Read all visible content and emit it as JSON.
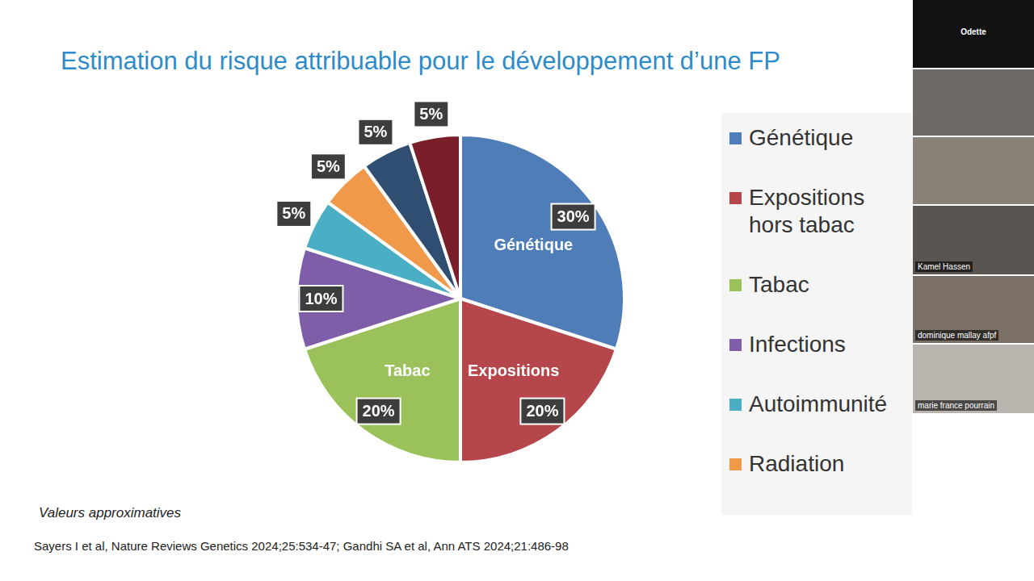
{
  "chart_data": {
    "type": "pie",
    "title": "Estimation du risque attribuable pour le développement d’une FP",
    "categories": [
      "Génétique",
      "Expositions hors tabac",
      "Tabac",
      "Infections",
      "Autoimmunité",
      "Radiation",
      null,
      null
    ],
    "values": [
      30,
      20,
      20,
      10,
      5,
      5,
      5,
      5
    ],
    "value_labels": [
      "30%",
      "20%",
      "20%",
      "10%",
      "5%",
      "5%",
      "5%",
      "5%"
    ],
    "slice_names": [
      "Génétique",
      "Expositions",
      "Tabac",
      null,
      null,
      null,
      null,
      null
    ],
    "colors": [
      "#4f7db8",
      "#b5464b",
      "#9bc25a",
      "#7e5ea8",
      "#4aafc5",
      "#f0994a",
      "#2f4e72",
      "#7a1f2a"
    ],
    "data_labels": true,
    "legend": "right"
  },
  "footnote": "Valeurs approximatives",
  "source": "Sayers I et al, Nature Reviews Genetics 2024;25:534-47; Gandhi SA et al, Ann ATS 2024;21:486-98",
  "participants": [
    "Odette",
    "Kamel Hassen",
    "dominique mallay afpf",
    "marie france pourrain"
  ]
}
